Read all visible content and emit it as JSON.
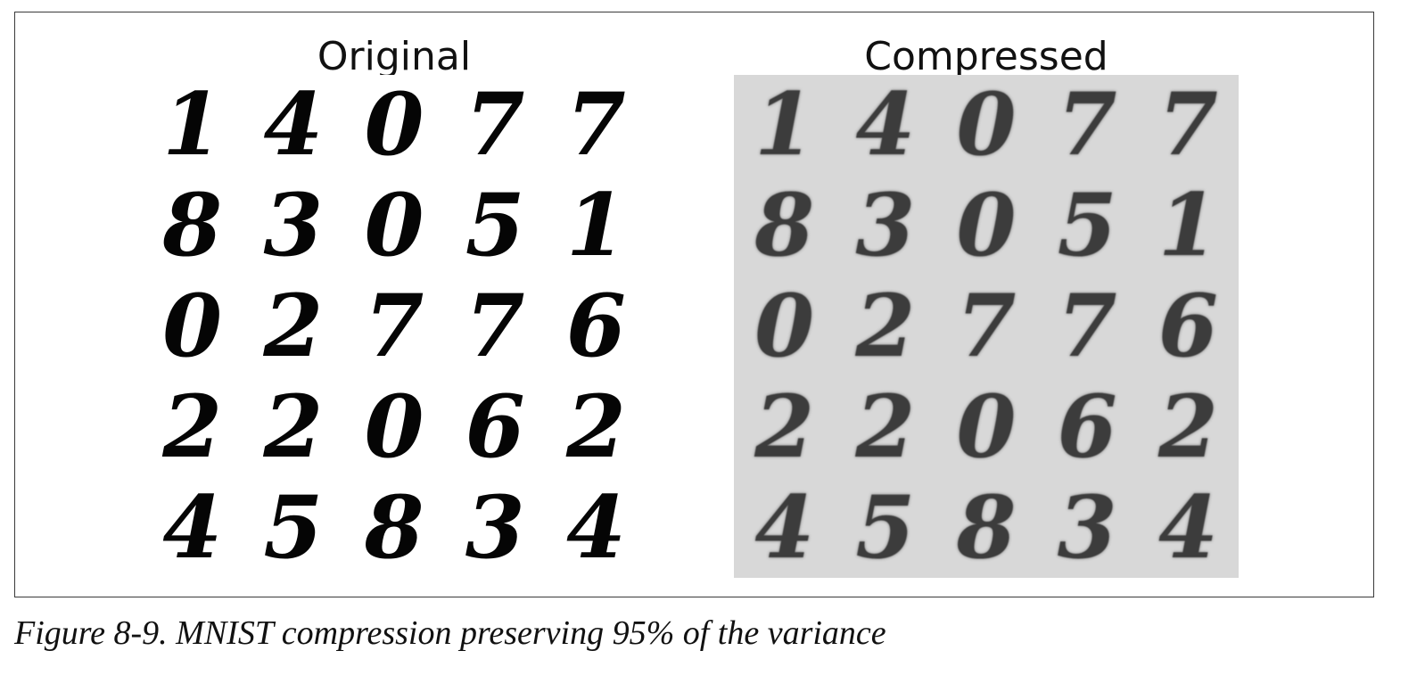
{
  "figure": {
    "panels": [
      {
        "title": "Original",
        "digits": [
          "1",
          "4",
          "0",
          "7",
          "7",
          "8",
          "3",
          "0",
          "5",
          "1",
          "0",
          "2",
          "7",
          "7",
          "6",
          "2",
          "2",
          "0",
          "6",
          "2",
          "4",
          "5",
          "8",
          "3",
          "4"
        ]
      },
      {
        "title": "Compressed",
        "digits": [
          "1",
          "4",
          "0",
          "7",
          "7",
          "8",
          "3",
          "0",
          "5",
          "1",
          "0",
          "2",
          "7",
          "7",
          "6",
          "2",
          "2",
          "0",
          "6",
          "2",
          "4",
          "5",
          "8",
          "3",
          "4"
        ]
      }
    ],
    "colors": {
      "frame": "#3a3a3a",
      "ink_original": "#050505",
      "ink_compressed": "#3c3c3c",
      "background_compressed": "#d8d8d8"
    }
  },
  "caption": "Figure 8-9. MNIST compression preserving 95% of the variance"
}
